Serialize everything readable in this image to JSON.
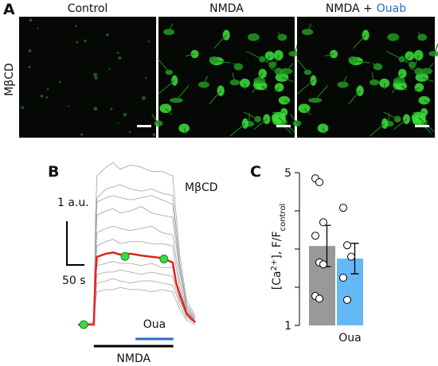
{
  "panel_labels": [
    "A",
    "B",
    "C"
  ],
  "panel_a": {
    "row_label": "MβCD",
    "columns": [
      {
        "text": "Control"
      },
      {
        "text": "NMDA"
      },
      {
        "text": "NMDA +",
        "highlight": "Ouab",
        "highlight_color": "#1f6fc5"
      }
    ]
  },
  "chart_data": [
    {
      "type": "line",
      "label": "MβCD",
      "x": [
        0,
        45,
        50,
        54,
        80,
        100,
        120,
        150,
        180,
        210,
        240,
        270,
        280,
        290,
        310,
        334
      ],
      "series": [
        {
          "color": "#a0a0a0",
          "values": [
            0,
            0,
            2.5,
            3.4,
            3.6,
            3.7,
            3.55,
            3.65,
            3.6,
            3.5,
            3.5,
            3.4,
            2.5,
            1.6,
            0.55,
            0.2
          ]
        },
        {
          "color": "#a0a0a0",
          "values": [
            0,
            0.05,
            2.2,
            2.9,
            3.1,
            3.15,
            3.2,
            3.1,
            3.05,
            3.1,
            3.0,
            2.95,
            2.2,
            1.4,
            0.45,
            0.15
          ]
        },
        {
          "color": "#a0a0a0",
          "values": [
            0,
            0,
            2.0,
            2.8,
            2.9,
            2.95,
            2.9,
            2.85,
            2.9,
            2.95,
            2.85,
            2.75,
            2.0,
            1.3,
            0.45,
            0.15
          ]
        },
        {
          "color": "#a0a0a0",
          "values": [
            0,
            0,
            1.8,
            2.5,
            2.6,
            2.65,
            2.55,
            2.6,
            2.7,
            2.55,
            2.5,
            2.45,
            1.8,
            1.2,
            0.4,
            0.1
          ]
        },
        {
          "color": "#a0a0a0",
          "values": [
            0,
            0,
            1.5,
            2.1,
            2.2,
            2.25,
            2.2,
            2.15,
            2.2,
            2.25,
            2.1,
            2.05,
            1.5,
            1.0,
            0.35,
            0.1
          ]
        },
        {
          "color": "#a0a0a0",
          "values": [
            0,
            0.05,
            1.3,
            1.8,
            1.9,
            1.95,
            1.85,
            1.9,
            1.9,
            1.85,
            1.85,
            1.8,
            1.3,
            0.85,
            0.3,
            0.1
          ]
        },
        {
          "color": "#a0a0a0",
          "values": [
            0,
            0,
            1.0,
            1.35,
            1.4,
            1.45,
            1.4,
            1.4,
            1.35,
            1.4,
            1.3,
            1.3,
            0.95,
            0.6,
            0.2,
            0.05
          ]
        },
        {
          "color": "#a0a0a0",
          "values": [
            0,
            0,
            0.85,
            1.15,
            1.2,
            1.2,
            1.25,
            1.2,
            1.15,
            1.2,
            1.15,
            1.1,
            0.8,
            0.55,
            0.2,
            0.05
          ]
        },
        {
          "color": "#a0a0a0",
          "values": [
            0,
            0,
            0.7,
            0.95,
            1.0,
            1.05,
            1.0,
            0.95,
            1.0,
            1.0,
            0.95,
            0.9,
            0.7,
            0.45,
            0.15,
            0.05
          ]
        },
        {
          "color": "#a0a0a0",
          "values": [
            0,
            0,
            0.55,
            0.75,
            0.8,
            0.8,
            0.85,
            0.8,
            0.8,
            0.75,
            0.8,
            0.75,
            0.55,
            0.35,
            0.1,
            0
          ]
        },
        {
          "color": "#e8201c",
          "values": [
            0,
            0,
            1.2,
            1.55,
            1.62,
            1.65,
            1.6,
            1.62,
            1.58,
            1.55,
            1.52,
            1.42,
            0.95,
            0.7,
            0.25,
            0.05
          ]
        }
      ],
      "markers": {
        "x": [
          16,
          134,
          245
        ],
        "values": [
          0,
          1.56,
          1.5
        ],
        "color": "#33dd44"
      },
      "scale_bars": [
        {
          "label": "1 a.u.",
          "value": 1
        },
        {
          "label": "50 s",
          "value": 50
        }
      ],
      "periods": [
        {
          "label": "Oua",
          "start": 164,
          "end": 272,
          "color": "#1f6fc5"
        },
        {
          "label": "NMDA",
          "start": 45,
          "end": 272,
          "color": "#000000"
        }
      ]
    },
    {
      "type": "bar",
      "categories": [
        null,
        "Oua"
      ],
      "label_color": "#1f6fc5",
      "values": [
        3.08,
        2.75
      ],
      "errors": [
        0.54,
        0.4
      ],
      "colors": [
        "#999999",
        "#66b8f5"
      ],
      "points": [
        [
          4.85,
          4.75,
          3.7,
          3.35,
          2.65,
          2.6,
          1.77,
          1.7
        ],
        [
          4.08,
          3.1,
          2.8,
          2.25,
          1.67
        ]
      ],
      "ylim": [
        1,
        5
      ],
      "yticks": [
        1,
        5
      ],
      "minor_yticks": [
        2,
        3,
        4
      ],
      "ylabel": [
        "[Ca",
        "2+",
        "], F/F",
        "control"
      ]
    }
  ]
}
